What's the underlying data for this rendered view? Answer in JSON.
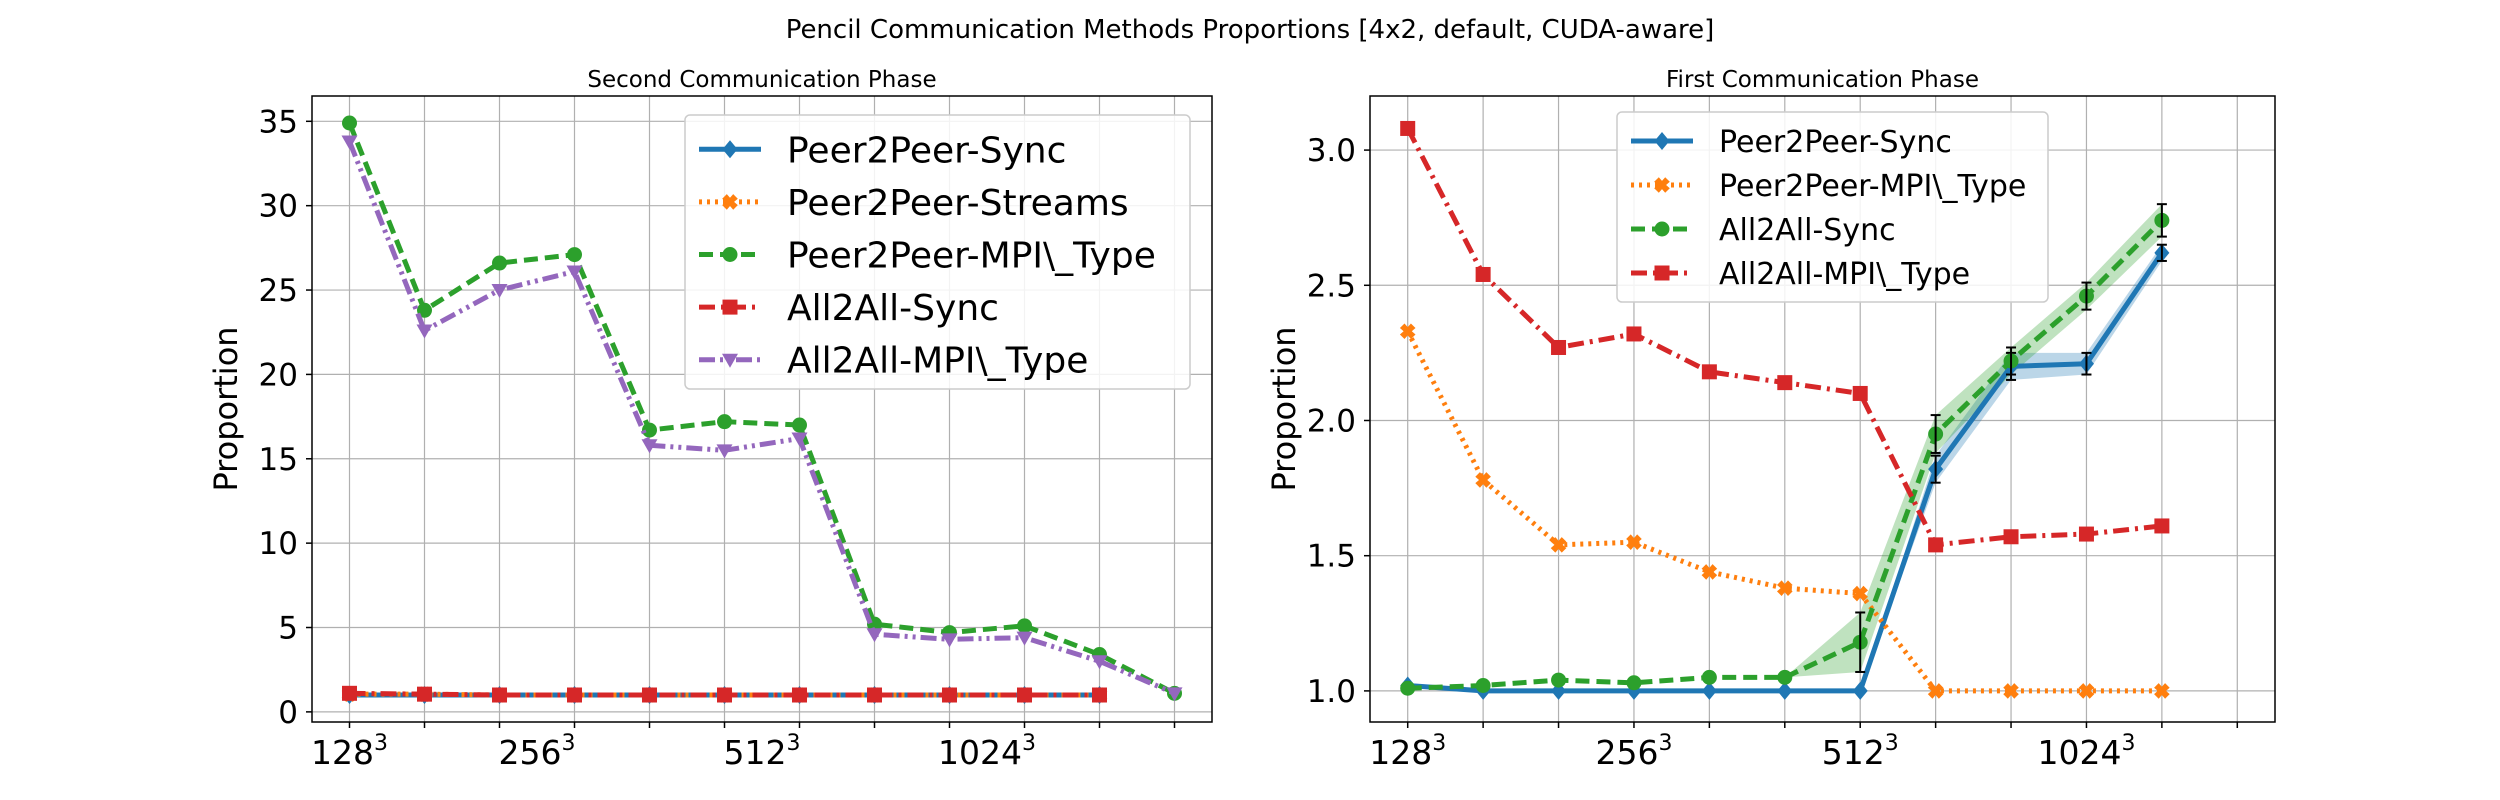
{
  "figure": {
    "title": "Pencil Communication Methods Proportions [4x2, default, CUDA-aware]"
  },
  "chart_data": [
    {
      "type": "line",
      "title": "Second Communication Phase",
      "xlabel": "",
      "ylabel": "Proportion",
      "x": [
        0,
        1,
        2,
        3,
        4,
        5,
        6,
        7,
        8,
        9,
        10,
        11
      ],
      "xticks": [
        {
          "pos": 0,
          "label": "128",
          "sup": "3"
        },
        {
          "pos": 2.5,
          "label": "256",
          "sup": "3"
        },
        {
          "pos": 5.5,
          "label": "512",
          "sup": "3"
        },
        {
          "pos": 8.5,
          "label": "1024",
          "sup": "3"
        }
      ],
      "xlim": [
        -0.5,
        11.5
      ],
      "ylim": [
        -0.6,
        36.5
      ],
      "yticks": [
        0,
        5,
        10,
        15,
        20,
        25,
        30,
        35
      ],
      "grid": true,
      "legend_position": "upper-right",
      "series": [
        {
          "name": "Peer2Peer-Sync",
          "color": "#1f77b4",
          "style": "solid",
          "marker": "diamond",
          "values": [
            1.0,
            1.0,
            1.0,
            1.0,
            1.0,
            1.0,
            1.0,
            1.0,
            1.0,
            1.0,
            1.0,
            null
          ]
        },
        {
          "name": "Peer2Peer-Streams",
          "color": "#ff7f0e",
          "style": "dotted",
          "marker": "x",
          "values": [
            1.05,
            1.05,
            1.0,
            1.0,
            1.0,
            1.0,
            1.0,
            1.0,
            1.0,
            1.0,
            1.0,
            null
          ]
        },
        {
          "name": "Peer2Peer-MPI\\_Type",
          "color": "#2ca02c",
          "style": "dashed",
          "marker": "circle",
          "values": [
            34.9,
            23.8,
            26.6,
            27.1,
            16.7,
            17.2,
            17.0,
            5.2,
            4.7,
            5.1,
            3.4,
            1.1
          ]
        },
        {
          "name": "All2All-Sync",
          "color": "#d62728",
          "style": "dashdot",
          "marker": "square",
          "values": [
            1.1,
            1.05,
            1.0,
            1.0,
            1.0,
            1.0,
            1.0,
            1.0,
            1.0,
            1.0,
            1.0,
            null
          ]
        },
        {
          "name": "All2All-MPI\\_Type",
          "color": "#9467bd",
          "style": "dashdotdot",
          "marker": "triangle-down",
          "values": [
            33.8,
            22.6,
            25.0,
            26.1,
            15.8,
            15.5,
            16.2,
            4.6,
            4.3,
            4.4,
            3.0,
            1.1
          ]
        }
      ]
    },
    {
      "type": "line",
      "title": "First Communication Phase",
      "xlabel": "",
      "ylabel": "Proportion",
      "x": [
        0,
        1,
        2,
        3,
        4,
        5,
        6,
        7,
        8,
        9,
        10
      ],
      "xticks": [
        {
          "pos": 0,
          "label": "128",
          "sup": "3"
        },
        {
          "pos": 3,
          "label": "256",
          "sup": "3"
        },
        {
          "pos": 6,
          "label": "512",
          "sup": "3"
        },
        {
          "pos": 9,
          "label": "1024",
          "sup": "3"
        }
      ],
      "xlim": [
        -0.5,
        11.5
      ],
      "ylim": [
        0.885,
        3.2
      ],
      "yticks": [
        1.0,
        1.5,
        2.0,
        2.5,
        3.0
      ],
      "grid": true,
      "legend_position": "upper-center",
      "series": [
        {
          "name": "Peer2Peer-Sync",
          "color": "#1f77b4",
          "style": "solid",
          "marker": "diamond",
          "values": [
            1.02,
            1.0,
            1.0,
            1.0,
            1.0,
            1.0,
            1.0,
            1.82,
            2.2,
            2.21,
            2.62
          ],
          "error": [
            0,
            0,
            0,
            0,
            0,
            0,
            0,
            0.05,
            0.05,
            0.04,
            0.03
          ]
        },
        {
          "name": "Peer2Peer-MPI\\_Type",
          "color": "#ff7f0e",
          "style": "dotted",
          "marker": "x",
          "values": [
            2.33,
            1.78,
            1.54,
            1.55,
            1.44,
            1.38,
            1.36,
            1.0,
            1.0,
            1.0,
            1.0
          ],
          "error": [
            0,
            0,
            0,
            0,
            0,
            0,
            0,
            0,
            0,
            0,
            0
          ]
        },
        {
          "name": "All2All-Sync",
          "color": "#2ca02c",
          "style": "dashed",
          "marker": "circle",
          "values": [
            1.01,
            1.02,
            1.04,
            1.03,
            1.05,
            1.05,
            1.18,
            1.95,
            2.22,
            2.46,
            2.74
          ],
          "error": [
            0,
            0,
            0,
            0,
            0,
            0,
            0.11,
            0.07,
            0.05,
            0.05,
            0.06
          ]
        },
        {
          "name": "All2All-MPI\\_Type",
          "color": "#d62728",
          "style": "dashdot",
          "marker": "square",
          "values": [
            3.08,
            2.54,
            2.27,
            2.32,
            2.18,
            2.14,
            2.1,
            1.54,
            1.57,
            1.58,
            1.61
          ],
          "error": [
            0,
            0,
            0,
            0,
            0,
            0,
            0,
            0,
            0,
            0,
            0
          ]
        }
      ]
    }
  ]
}
